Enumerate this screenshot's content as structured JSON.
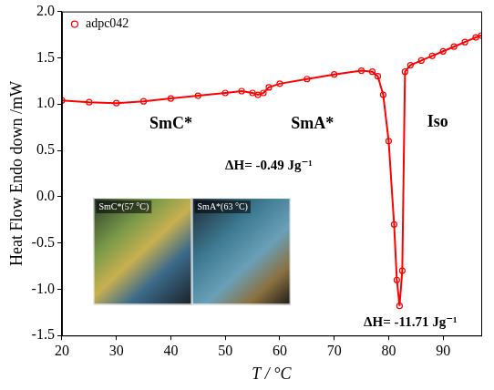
{
  "chart_data": {
    "type": "line",
    "x_label": "T / °C",
    "y_label": "Heat Flow Endo down /mW",
    "series": [
      {
        "name": "adpc042",
        "color": "#ff0000",
        "marker": "circle",
        "line_style": "solid",
        "x": [
          20,
          25,
          30,
          35,
          40,
          45,
          50,
          53,
          55,
          56,
          57,
          58,
          60,
          65,
          70,
          75,
          77,
          78,
          79,
          80,
          81,
          81.5,
          82,
          82.5,
          83,
          84,
          86,
          88,
          90,
          92,
          94,
          96,
          97
        ],
        "values": [
          1.04,
          1.02,
          1.01,
          1.03,
          1.06,
          1.09,
          1.12,
          1.14,
          1.12,
          1.1,
          1.12,
          1.18,
          1.22,
          1.27,
          1.32,
          1.36,
          1.35,
          1.3,
          1.1,
          0.6,
          -0.3,
          -0.9,
          -1.18,
          -0.8,
          1.35,
          1.42,
          1.47,
          1.52,
          1.57,
          1.62,
          1.67,
          1.72,
          1.74
        ]
      }
    ],
    "xlim": [
      20,
      97
    ],
    "xticks": [
      20,
      30,
      40,
      50,
      60,
      70,
      80,
      90
    ],
    "ylim": [
      -1.5,
      2.0
    ],
    "yticks": [
      -1.5,
      {
        "value": -1,
        "label": "-1.0"
      },
      -0.5,
      {
        "value": 0,
        "label": "0.0"
      },
      0.5,
      {
        "value": 1,
        "label": "1.0"
      },
      1.5,
      {
        "value": 2,
        "label": "2.0"
      }
    ],
    "grid": false,
    "legend": "upper left",
    "annotations": [
      {
        "text": "SmC*",
        "x": 40,
        "y": 0.78
      },
      {
        "text": "SmA*",
        "x": 66,
        "y": 0.78
      },
      {
        "text": "Iso",
        "x": 89,
        "y": 0.8
      },
      {
        "text": "ΔH= -0.49 Jg⁻¹",
        "x": 58,
        "y": 0.33
      },
      {
        "text": "ΔH= -11.71 Jg⁻¹",
        "x": 84,
        "y": -1.36
      }
    ],
    "inset_images": [
      "SmC*(57 °C)",
      "SmA*(63 °C)"
    ]
  }
}
